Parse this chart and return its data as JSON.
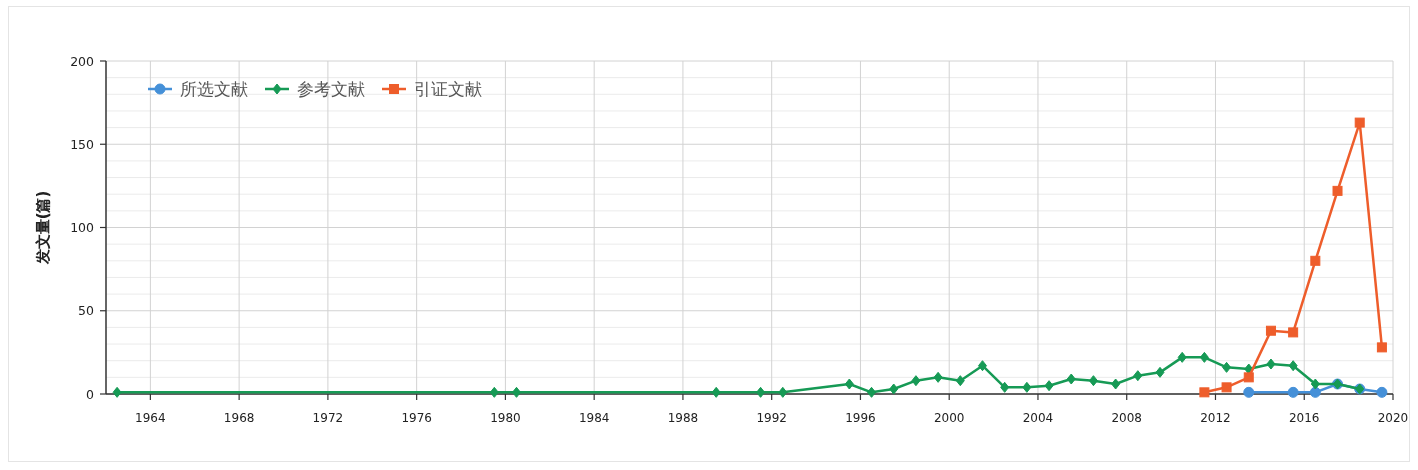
{
  "chart_data": {
    "type": "line",
    "ylabel": "发文量(篇)",
    "xlim": [
      1962,
      2020
    ],
    "xticks": [
      1964,
      1968,
      1972,
      1976,
      1980,
      1984,
      1988,
      1992,
      1996,
      2000,
      2004,
      2008,
      2012,
      2016,
      2020
    ],
    "ylim": [
      0,
      200
    ],
    "yticks": [
      0,
      {
        "value": 10,
        "label": null
      },
      {
        "value": 20,
        "label": null
      },
      {
        "value": 30,
        "label": null
      },
      {
        "value": 40,
        "label": null
      },
      50,
      {
        "value": 60,
        "label": null
      },
      {
        "value": 70,
        "label": null
      },
      {
        "value": 80,
        "label": null
      },
      {
        "value": 90,
        "label": null
      },
      100,
      {
        "value": 110,
        "label": null
      },
      {
        "value": 120,
        "label": null
      },
      {
        "value": 130,
        "label": null
      },
      {
        "value": 140,
        "label": null
      },
      150,
      {
        "value": 160,
        "label": null
      },
      {
        "value": 170,
        "label": null
      },
      {
        "value": 180,
        "label": null
      },
      {
        "value": 190,
        "label": null
      },
      200
    ],
    "grid": true,
    "legend": "top left",
    "line_style": "solid",
    "series": [
      {
        "name": "所选文献",
        "color": "#4590d8",
        "marker": "circle",
        "x": [
          2013.5,
          2015.5,
          2016.5,
          2017.5,
          2018.5,
          2019.5
        ],
        "values": [
          1,
          1,
          1,
          6,
          3,
          1
        ]
      },
      {
        "name": "参考文献",
        "color": "#169a55",
        "marker": "diamond",
        "x": [
          1962.5,
          1979.5,
          1980.5,
          1989.5,
          1991.5,
          1992.5,
          1995.5,
          1996.5,
          1997.5,
          1998.5,
          1999.5,
          2000.5,
          2001.5,
          2002.5,
          2003.5,
          2004.5,
          2005.5,
          2006.5,
          2007.5,
          2008.5,
          2009.5,
          2010.5,
          2011.5,
          2012.5,
          2013.5,
          2014.5,
          2015.5,
          2016.5,
          2017.5,
          2018.5
        ],
        "values": [
          1,
          1,
          1,
          1,
          1,
          1,
          6,
          1,
          3,
          8,
          10,
          8,
          17,
          4,
          4,
          5,
          9,
          8,
          6,
          11,
          13,
          22,
          22,
          16,
          15,
          18,
          17,
          6,
          6,
          3
        ]
      },
      {
        "name": "引证文献",
        "color": "#ee5d2b",
        "marker": "square",
        "x": [
          2011.5,
          2012.5,
          2013.5,
          2014.5,
          2015.5,
          2016.5,
          2017.5,
          2018.5,
          2019.5
        ],
        "values": [
          1,
          4,
          10,
          38,
          37,
          80,
          122,
          163,
          28
        ]
      }
    ]
  }
}
